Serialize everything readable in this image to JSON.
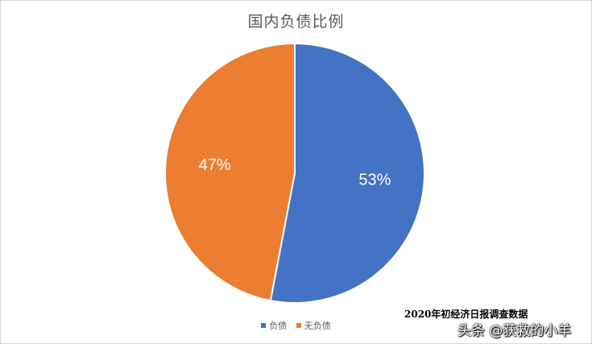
{
  "chart_data": {
    "type": "pie",
    "title": "国内负债比例",
    "categories": [
      "负债",
      "无负债"
    ],
    "values": [
      53,
      47
    ],
    "data_labels": [
      "53%",
      "47%"
    ],
    "colors": [
      "#4472c4",
      "#ed7d31"
    ],
    "legend_position": "bottom"
  },
  "annotations": {
    "source_note": "2020年初经济日报调查数据",
    "watermark": "头条 @获救的小羊"
  }
}
